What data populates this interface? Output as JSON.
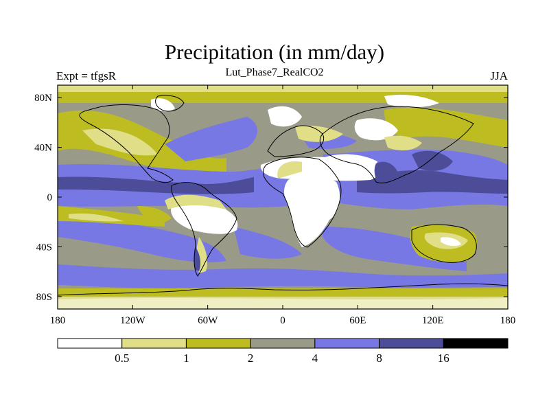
{
  "title": "Precipitation (in mm/day)",
  "left_label": "Expt = tfgsR",
  "center_label": "Lut_Phase7_RealCO2",
  "right_label": "JJA",
  "lat_ticks": [
    {
      "value": 80,
      "label": "80N"
    },
    {
      "value": 40,
      "label": "40N"
    },
    {
      "value": 0,
      "label": "0"
    },
    {
      "value": -40,
      "label": "40S"
    },
    {
      "value": -80,
      "label": "80S"
    }
  ],
  "lon_ticks": [
    {
      "value": -180,
      "label": "180"
    },
    {
      "value": -120,
      "label": "120W"
    },
    {
      "value": -60,
      "label": "60W"
    },
    {
      "value": 0,
      "label": "0"
    },
    {
      "value": 60,
      "label": "60E"
    },
    {
      "value": 120,
      "label": "120E"
    },
    {
      "value": 180,
      "label": "180"
    }
  ],
  "colorbar": {
    "colors": [
      "#ffffff",
      "#e0df87",
      "#bdbd22",
      "#9a9a88",
      "#7878e4",
      "#4c4c99",
      "#000000"
    ],
    "boundaries": [
      "0.5",
      "1",
      "2",
      "4",
      "8",
      "16"
    ]
  }
}
